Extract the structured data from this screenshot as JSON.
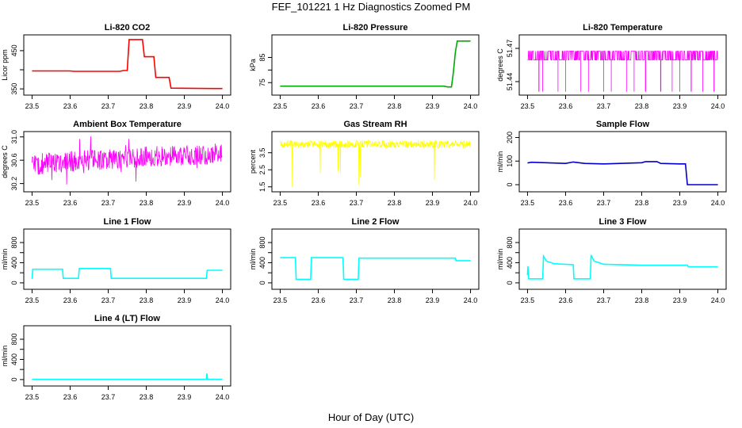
{
  "figure": {
    "title": "FEF_101221  1 Hz Diagnostics Zoomed PM",
    "xlabel": "Hour of Day (UTC)"
  },
  "chart_data": [
    {
      "type": "line",
      "title": "Li-820 CO2",
      "xlabel": "",
      "ylabel": "Licor ppm",
      "xlim": [
        23.5,
        24.0
      ],
      "ylim": [
        340,
        485
      ],
      "xticks": [
        "23.5",
        "23.6",
        "23.7",
        "23.8",
        "23.9",
        "24.0"
      ],
      "yticks": [
        350,
        400,
        450
      ],
      "ytick_labels": [
        "350",
        "",
        "450"
      ],
      "color": "#ff0000",
      "series": [
        {
          "x": [
            23.5,
            23.6,
            23.61,
            23.73,
            23.74,
            23.75,
            23.755,
            23.79,
            23.795,
            23.82,
            23.825,
            23.86,
            23.865,
            23.98,
            24.0
          ],
          "y": [
            397,
            397,
            396,
            396,
            398,
            398,
            479,
            479,
            434,
            434,
            380,
            380,
            352,
            351,
            351
          ]
        }
      ]
    },
    {
      "type": "line",
      "title": "Li-820 Pressure",
      "xlabel": "",
      "ylabel": "kPa",
      "xlim": [
        23.5,
        24.0
      ],
      "ylim": [
        71,
        93
      ],
      "xticks": [
        "23.5",
        "23.6",
        "23.7",
        "23.8",
        "23.9",
        "24.0"
      ],
      "yticks": [
        75,
        80,
        85
      ],
      "ytick_labels": [
        "75",
        "",
        "85"
      ],
      "color": "#00aa00",
      "series": [
        {
          "x": [
            23.5,
            23.93,
            23.94,
            23.95,
            23.955,
            23.96,
            23.965,
            24.0
          ],
          "y": [
            73.6,
            73.6,
            73.3,
            73.3,
            79,
            87,
            91.5,
            91.5
          ]
        }
      ]
    },
    {
      "type": "line",
      "title": "Li-820 Temperature",
      "xlabel": "",
      "ylabel": "degrees C",
      "xlim": [
        23.5,
        24.0
      ],
      "ylim": [
        51.43,
        51.48
      ],
      "xticks": [
        "23.5",
        "23.6",
        "23.7",
        "23.8",
        "23.9",
        "24.0"
      ],
      "yticks": [
        51.44,
        51.47
      ],
      "ytick_labels": [
        "51.44",
        "51.47"
      ],
      "color": "#ff00ff",
      "series": [
        {
          "levels": [
            51.4675,
            51.4595
          ],
          "dips_to": 51.431,
          "dip_x": [
            23.53,
            23.54,
            23.58,
            23.6,
            23.64,
            23.66,
            23.7,
            23.72,
            23.76,
            23.78,
            23.81,
            23.85,
            23.88,
            23.9,
            23.93,
            23.96,
            23.99
          ]
        }
      ]
    },
    {
      "type": "line",
      "title": "Ambient Box Temperature",
      "xlabel": "",
      "ylabel": "degrees C",
      "xlim": [
        23.5,
        24.0
      ],
      "ylim": [
        30.1,
        31.05
      ],
      "xticks": [
        "23.5",
        "23.6",
        "23.7",
        "23.8",
        "23.9",
        "24.0"
      ],
      "yticks": [
        30.2,
        30.6,
        31.0
      ],
      "ytick_labels": [
        "30.2",
        "30.6",
        "31.0"
      ],
      "color": "#ff00ff",
      "series": [
        {
          "x": [
            23.5,
            23.6,
            23.7,
            23.8,
            23.9,
            24.0
          ],
          "y": [
            30.52,
            30.58,
            30.62,
            30.66,
            30.68,
            30.72
          ],
          "noise": 0.22
        }
      ]
    },
    {
      "type": "line",
      "title": "Gas Stream RH",
      "xlabel": "",
      "ylabel": "percent",
      "xlim": [
        23.5,
        24.0
      ],
      "ylim": [
        1.35,
        4.6
      ],
      "xticks": [
        "23.5",
        "23.6",
        "23.7",
        "23.8",
        "23.9",
        "24.0"
      ],
      "yticks": [
        1.5,
        2.5,
        3.5
      ],
      "ytick_labels": [
        "1.5",
        "2.5",
        "3.5"
      ],
      "color": "#ffff00",
      "series": [
        {
          "base": 4.0,
          "noise": 0.45,
          "spikes": [
            {
              "x": 23.532,
              "y": 1.5
            },
            {
              "x": 23.605,
              "y": 2.3
            },
            {
              "x": 23.652,
              "y": 2.4
            },
            {
              "x": 23.658,
              "y": 2.3
            },
            {
              "x": 23.707,
              "y": 1.6
            },
            {
              "x": 23.71,
              "y": 2.1
            },
            {
              "x": 23.905,
              "y": 1.9
            }
          ]
        }
      ]
    },
    {
      "type": "line",
      "title": "Sample Flow",
      "xlabel": "",
      "ylabel": "ml/min",
      "xlim": [
        23.5,
        24.0
      ],
      "ylim": [
        -20,
        215
      ],
      "xticks": [
        "23.5",
        "23.6",
        "23.7",
        "23.8",
        "23.9",
        "24.0"
      ],
      "yticks": [
        0,
        100,
        200
      ],
      "ytick_labels": [
        "0",
        "100",
        "200"
      ],
      "color": "#0000cc",
      "series": [
        {
          "x": [
            23.5,
            23.51,
            23.6,
            23.62,
            23.65,
            23.7,
            23.8,
            23.81,
            23.84,
            23.85,
            23.9,
            23.915,
            23.92,
            24.0
          ],
          "y": [
            92,
            95,
            90,
            96,
            90,
            88,
            93,
            98,
            98,
            90,
            88,
            88,
            0,
            0
          ]
        }
      ]
    },
    {
      "type": "line",
      "title": "Line 1 Flow",
      "xlabel": "",
      "ylabel": "ml/min",
      "xlim": [
        23.5,
        24.0
      ],
      "ylim": [
        -80,
        1020
      ],
      "xticks": [
        "23.5",
        "23.6",
        "23.7",
        "23.8",
        "23.9",
        "24.0"
      ],
      "yticks": [
        0,
        200,
        400,
        600,
        800
      ],
      "ytick_labels": [
        "0",
        "",
        "400",
        "",
        "800"
      ],
      "color": "#00ffff",
      "series": [
        {
          "x": [
            23.5,
            23.502,
            23.58,
            23.582,
            23.622,
            23.624,
            23.706,
            23.708,
            23.958,
            23.96,
            24.0
          ],
          "y": [
            80,
            270,
            270,
            90,
            90,
            285,
            285,
            90,
            90,
            250,
            250
          ]
        }
      ]
    },
    {
      "type": "line",
      "title": "Line 2 Flow",
      "xlabel": "",
      "ylabel": "ml/min",
      "xlim": [
        23.5,
        24.0
      ],
      "ylim": [
        -80,
        1020
      ],
      "xticks": [
        "23.5",
        "23.6",
        "23.7",
        "23.8",
        "23.9",
        "24.0"
      ],
      "yticks": [
        0,
        200,
        400,
        600,
        800
      ],
      "ytick_labels": [
        "0",
        "",
        "400",
        "",
        "800"
      ],
      "color": "#00ffff",
      "series": [
        {
          "x": [
            23.5,
            23.54,
            23.542,
            23.58,
            23.582,
            23.665,
            23.667,
            23.705,
            23.707,
            23.96,
            23.962,
            24.0
          ],
          "y": [
            500,
            500,
            70,
            70,
            500,
            500,
            70,
            70,
            490,
            490,
            440,
            440
          ]
        }
      ]
    },
    {
      "type": "line",
      "title": "Line 3 Flow",
      "xlabel": "",
      "ylabel": "ml/min",
      "xlim": [
        23.5,
        24.0
      ],
      "ylim": [
        -80,
        1020
      ],
      "xticks": [
        "23.5",
        "23.6",
        "23.7",
        "23.8",
        "23.9",
        "24.0"
      ],
      "yticks": [
        0,
        200,
        400,
        600,
        800
      ],
      "ytick_labels": [
        "0",
        "",
        "400",
        "",
        "800"
      ],
      "color": "#00ffff",
      "series": [
        {
          "x": [
            23.5,
            23.501,
            23.503,
            23.54,
            23.542,
            23.55,
            23.57,
            23.62,
            23.622,
            23.665,
            23.667,
            23.675,
            23.7,
            23.8,
            23.9,
            23.92,
            23.922,
            24.0
          ],
          "y": [
            150,
            330,
            80,
            80,
            530,
            430,
            380,
            360,
            80,
            80,
            550,
            430,
            370,
            350,
            350,
            350,
            320,
            320
          ]
        }
      ]
    },
    {
      "type": "line",
      "title": "Line 4 (LT) Flow",
      "xlabel": "",
      "ylabel": "ml/min",
      "xlim": [
        23.5,
        24.0
      ],
      "ylim": [
        -80,
        1020
      ],
      "xticks": [
        "23.5",
        "23.6",
        "23.7",
        "23.8",
        "23.9",
        "24.0"
      ],
      "yticks": [
        0,
        200,
        400,
        600,
        800
      ],
      "ytick_labels": [
        "0",
        "",
        "400",
        "",
        "800"
      ],
      "color": "#00ffff",
      "series": [
        {
          "x": [
            23.5,
            23.958,
            23.959,
            23.96,
            23.961,
            24.0
          ],
          "y": [
            5,
            5,
            120,
            60,
            5,
            5
          ]
        }
      ]
    }
  ]
}
